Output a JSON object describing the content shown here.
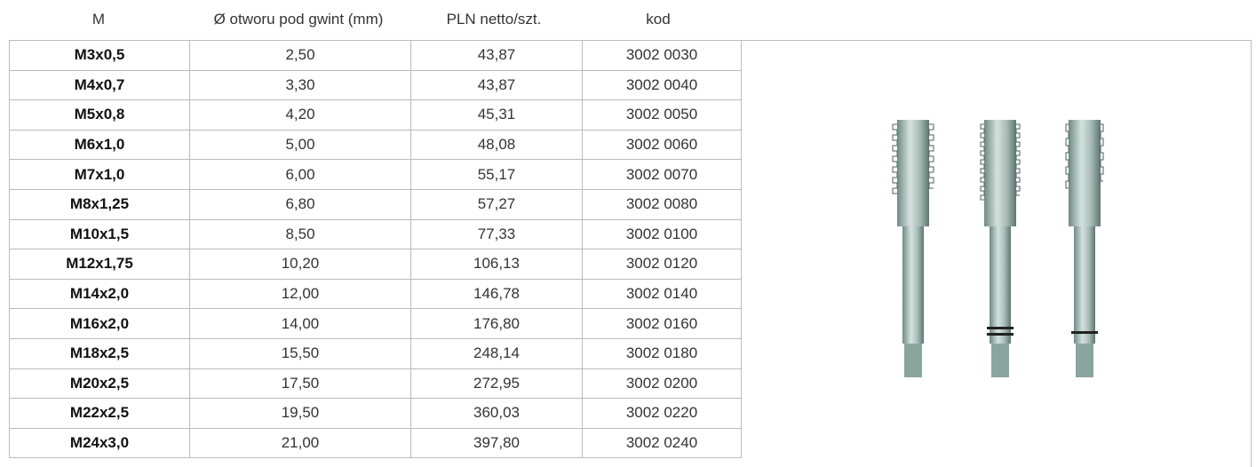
{
  "table": {
    "header": [
      "M",
      "Ø otworu pod gwint (mm)",
      "PLN netto/szt.",
      "kod"
    ],
    "rows": [
      [
        "M3x0,5",
        "2,50",
        "43,87",
        "3002 0030"
      ],
      [
        "M4x0,7",
        "3,30",
        "43,87",
        "3002 0040"
      ],
      [
        "M5x0,8",
        "4,20",
        "45,31",
        "3002 0050"
      ],
      [
        "M6x1,0",
        "5,00",
        "48,08",
        "3002 0060"
      ],
      [
        "M7x1,0",
        "6,00",
        "55,17",
        "3002 0070"
      ],
      [
        "M8x1,25",
        "6,80",
        "57,27",
        "3002 0080"
      ],
      [
        "M10x1,5",
        "8,50",
        "77,33",
        "3002 0100"
      ],
      [
        "M12x1,75",
        "10,20",
        "106,13",
        "3002 0120"
      ],
      [
        "M14x2,0",
        "12,00",
        "146,78",
        "3002 0140"
      ],
      [
        "M16x2,0",
        "14,00",
        "176,80",
        "3002 0160"
      ],
      [
        "M18x2,5",
        "15,50",
        "248,14",
        "3002 0180"
      ],
      [
        "M20x2,5",
        "17,50",
        "272,95",
        "3002 0200"
      ],
      [
        "M22x2,5",
        "19,50",
        "360,03",
        "3002 0220"
      ],
      [
        "M24x3,0",
        "21,00",
        "397,80",
        "3002 0240"
      ]
    ]
  }
}
